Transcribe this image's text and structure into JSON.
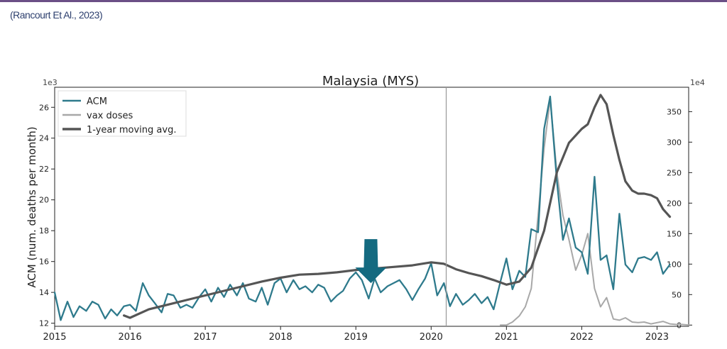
{
  "citation": "(Rancourt Et Al., 2023)",
  "colors": {
    "acm": "#2e7a8c",
    "vax": "#a8a8a8",
    "moving_avg": "#555555",
    "arrow": "#146a80",
    "frame_border": "#6b4f86"
  },
  "chart_data": {
    "type": "line",
    "title": "Malaysia (MYS)",
    "ylabel": "ACM (num. deaths per month)",
    "y_left_scale_label": "1e3",
    "y_right_scale_label": "1e4",
    "y_left_ticks": [
      "12",
      "14",
      "16",
      "18",
      "20",
      "22",
      "24",
      "26"
    ],
    "y_right_ticks": [
      "0",
      "50",
      "100",
      "150",
      "200",
      "250",
      "300",
      "350"
    ],
    "x_ticks": [
      "2015",
      "2016",
      "2017",
      "2018",
      "2019",
      "2020",
      "2021",
      "2022",
      "2023"
    ],
    "xlim": [
      2015.0,
      2023.42
    ],
    "ylim_left": [
      11.8,
      27.3
    ],
    "ylim_right": [
      -2,
      390
    ],
    "grid": false,
    "legend_placement": "top-left",
    "annotations": {
      "vertical_line_x": 2020.2,
      "arrow_x": 2019.2,
      "arrow_tip_y": 14.6
    },
    "series": [
      {
        "name": "ACM",
        "axis": "left",
        "x": [
          2015.0,
          2015.08,
          2015.17,
          2015.25,
          2015.33,
          2015.42,
          2015.5,
          2015.58,
          2015.67,
          2015.75,
          2015.83,
          2015.92,
          2016.0,
          2016.08,
          2016.17,
          2016.25,
          2016.33,
          2016.42,
          2016.5,
          2016.58,
          2016.67,
          2016.75,
          2016.83,
          2016.92,
          2017.0,
          2017.08,
          2017.17,
          2017.25,
          2017.33,
          2017.42,
          2017.5,
          2017.58,
          2017.67,
          2017.75,
          2017.83,
          2017.92,
          2018.0,
          2018.08,
          2018.17,
          2018.25,
          2018.33,
          2018.42,
          2018.5,
          2018.58,
          2018.67,
          2018.75,
          2018.83,
          2018.92,
          2019.0,
          2019.08,
          2019.17,
          2019.25,
          2019.33,
          2019.42,
          2019.5,
          2019.58,
          2019.67,
          2019.75,
          2019.83,
          2019.92,
          2020.0,
          2020.08,
          2020.17,
          2020.25,
          2020.33,
          2020.42,
          2020.5,
          2020.58,
          2020.67,
          2020.75,
          2020.83,
          2020.92,
          2021.0,
          2021.08,
          2021.17,
          2021.25,
          2021.33,
          2021.42,
          2021.5,
          2021.58,
          2021.67,
          2021.75,
          2021.83,
          2021.92,
          2022.0,
          2022.08,
          2022.17,
          2022.25,
          2022.33,
          2022.42,
          2022.5,
          2022.58,
          2022.67,
          2022.75,
          2022.83,
          2022.92,
          2023.0,
          2023.08,
          2023.17
        ],
        "values": [
          14.0,
          12.2,
          13.4,
          12.4,
          13.1,
          12.8,
          13.4,
          13.2,
          12.3,
          12.9,
          12.5,
          13.1,
          13.2,
          12.8,
          14.6,
          13.8,
          13.3,
          12.7,
          13.9,
          13.8,
          13.0,
          13.2,
          13.0,
          13.7,
          14.2,
          13.4,
          14.3,
          13.7,
          14.5,
          13.8,
          14.6,
          13.6,
          13.4,
          14.3,
          13.2,
          14.6,
          14.9,
          14.0,
          14.8,
          14.2,
          14.4,
          14.0,
          14.5,
          14.3,
          13.4,
          13.8,
          14.1,
          14.9,
          15.3,
          14.8,
          13.6,
          14.9,
          14.0,
          14.4,
          14.6,
          14.8,
          14.2,
          13.5,
          14.2,
          14.9,
          15.9,
          13.8,
          14.6,
          13.1,
          13.9,
          13.2,
          13.5,
          13.9,
          13.3,
          13.7,
          12.9,
          14.7,
          16.2,
          14.2,
          15.4,
          15.0,
          18.1,
          17.9,
          24.6,
          26.7,
          21.2,
          17.4,
          18.8,
          16.9,
          16.6,
          15.2,
          21.5,
          16.1,
          16.4,
          14.2,
          19.1,
          15.8,
          15.3,
          16.2,
          16.3,
          16.1,
          16.6,
          15.2,
          15.8
        ]
      },
      {
        "name": "vax doses",
        "axis": "right",
        "x": [
          2020.92,
          2021.0,
          2021.08,
          2021.17,
          2021.25,
          2021.33,
          2021.42,
          2021.5,
          2021.58,
          2021.67,
          2021.75,
          2021.83,
          2021.92,
          2022.0,
          2022.08,
          2022.17,
          2022.25,
          2022.33,
          2022.42,
          2022.5,
          2022.58,
          2022.67,
          2022.75,
          2022.83,
          2022.92,
          2023.0,
          2023.08,
          2023.17,
          2023.25,
          2023.33,
          2023.42
        ],
        "values": [
          0,
          0,
          5,
          15,
          30,
          60,
          180,
          290,
          370,
          250,
          180,
          140,
          90,
          115,
          150,
          60,
          30,
          45,
          10,
          8,
          12,
          5,
          4,
          5,
          2,
          4,
          6,
          2,
          1,
          1,
          0
        ]
      },
      {
        "name": "1-year moving avg.",
        "axis": "left",
        "x": [
          2015.92,
          2016.0,
          2016.25,
          2016.5,
          2016.75,
          2017.0,
          2017.25,
          2017.5,
          2017.75,
          2018.0,
          2018.25,
          2018.5,
          2018.75,
          2019.0,
          2019.25,
          2019.5,
          2019.75,
          2020.0,
          2020.17,
          2020.33,
          2020.5,
          2020.67,
          2020.83,
          2021.0,
          2021.17,
          2021.33,
          2021.5,
          2021.67,
          2021.83,
          2022.0,
          2022.08,
          2022.17,
          2022.25,
          2022.33,
          2022.42,
          2022.5,
          2022.58,
          2022.67,
          2022.75,
          2022.83,
          2022.92,
          2023.0,
          2023.08,
          2023.17
        ],
        "values": [
          12.5,
          12.35,
          12.9,
          13.2,
          13.5,
          13.8,
          14.1,
          14.4,
          14.7,
          14.95,
          15.15,
          15.2,
          15.3,
          15.45,
          15.55,
          15.65,
          15.75,
          15.95,
          15.85,
          15.5,
          15.25,
          15.05,
          14.8,
          14.5,
          14.7,
          15.6,
          18.0,
          21.8,
          23.7,
          24.6,
          24.9,
          26.0,
          26.8,
          26.2,
          24.2,
          22.6,
          21.2,
          20.6,
          20.4,
          20.4,
          20.3,
          20.1,
          19.4,
          18.9
        ]
      }
    ]
  }
}
